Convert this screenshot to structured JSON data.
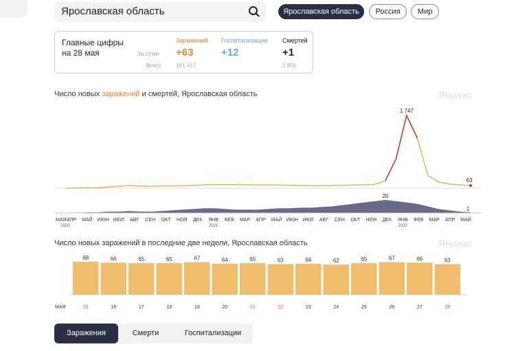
{
  "search": {
    "value": "Ярославская область"
  },
  "regions": [
    {
      "label": "Ярославская область",
      "active": true
    },
    {
      "label": "Россия",
      "active": false
    },
    {
      "label": "Мир",
      "active": false
    }
  ],
  "summary": {
    "title_line1": "Главные цифры",
    "title_line2": "на 28 мая",
    "row_day": "За сутки",
    "row_total": "Всего",
    "infections": {
      "label": "Заражений",
      "day": "+63",
      "total": "161 417",
      "color": "#e5832f"
    },
    "hospitalizations": {
      "label": "Госпитализации",
      "day": "+12",
      "total": "",
      "color": "#6aa6d6"
    },
    "deaths": {
      "label": "Смертей",
      "day": "+1",
      "total": "2 806",
      "color": "#222222"
    }
  },
  "chart1": {
    "title_pre": "Число новых ",
    "title_hl": "заражений",
    "title_post": " и смертей, Ярославская область",
    "watermark": "Яндекс"
  },
  "chart2": {
    "title": "Число новых заражений в последние две недели, Ярославская область",
    "watermark": "Яндекс"
  },
  "tabs": [
    {
      "label": "Заражения",
      "active": true
    },
    {
      "label": "Смерти",
      "active": false
    },
    {
      "label": "Госпитализации",
      "active": false
    }
  ],
  "chart_data": [
    {
      "type": "line",
      "title": "Число новых заражений и смертей, Ярославская область",
      "x_ticks": [
        "МАЯ",
        "АПР",
        "МАЙ",
        "ИЮН",
        "ИЮЛ",
        "АВГ",
        "СЕН",
        "ОКТ",
        "НОЯ",
        "ДЕК",
        "ЯНВ",
        "ФЕВ",
        "МАР",
        "АПР",
        "МАЙ",
        "ИЮН",
        "ИЮЛ",
        "АВГ",
        "СЕН",
        "ОКТ",
        "НОЯ",
        "ДЕК",
        "ЯНВ",
        "ФЕВ",
        "МАР",
        "АПР",
        "МАЙ"
      ],
      "year_labels": [
        {
          "label": "2020",
          "after_tick": 0
        },
        {
          "label": "2021",
          "after_tick": 10
        },
        {
          "label": "2022",
          "after_tick": 22
        }
      ],
      "series": [
        {
          "name": "Заражений",
          "color": "#e5b25f",
          "peak_color": "#c0392b",
          "values": [
            0,
            5,
            10,
            15,
            30,
            45,
            65,
            50,
            45,
            55,
            55,
            60,
            65,
            80,
            85,
            85,
            85,
            80,
            75,
            75,
            75,
            70,
            65,
            60,
            60,
            65,
            70,
            75,
            80,
            90,
            180,
            700,
            1747,
            1200,
            300,
            150,
            100,
            80,
            63
          ],
          "peak_label": "1 747",
          "last_label": "63"
        },
        {
          "name": "Смертей",
          "color": "#4d5173",
          "values": [
            0,
            0,
            1,
            1,
            2,
            2,
            3,
            2,
            2,
            3,
            4,
            5,
            6,
            7,
            7,
            6,
            5,
            5,
            5,
            6,
            7,
            7,
            8,
            8,
            9,
            10,
            12,
            14,
            16,
            18,
            20,
            18,
            16,
            14,
            10,
            6,
            4,
            2,
            1
          ],
          "peak_label": "20",
          "last_label": "1"
        }
      ]
    },
    {
      "type": "bar",
      "title": "Число новых заражений в последние две недели, Ярославская область",
      "month_label": "МАЯ",
      "categories": [
        "15",
        "16",
        "17",
        "18",
        "19",
        "20",
        "21",
        "22",
        "23",
        "24",
        "25",
        "26",
        "27",
        "28"
      ],
      "weekend": [
        "15",
        "21",
        "22",
        "28"
      ],
      "values": [
        68,
        66,
        65,
        65,
        67,
        64,
        65,
        63,
        64,
        62,
        65,
        67,
        66,
        63
      ],
      "color": "#f0bd6c"
    }
  ]
}
